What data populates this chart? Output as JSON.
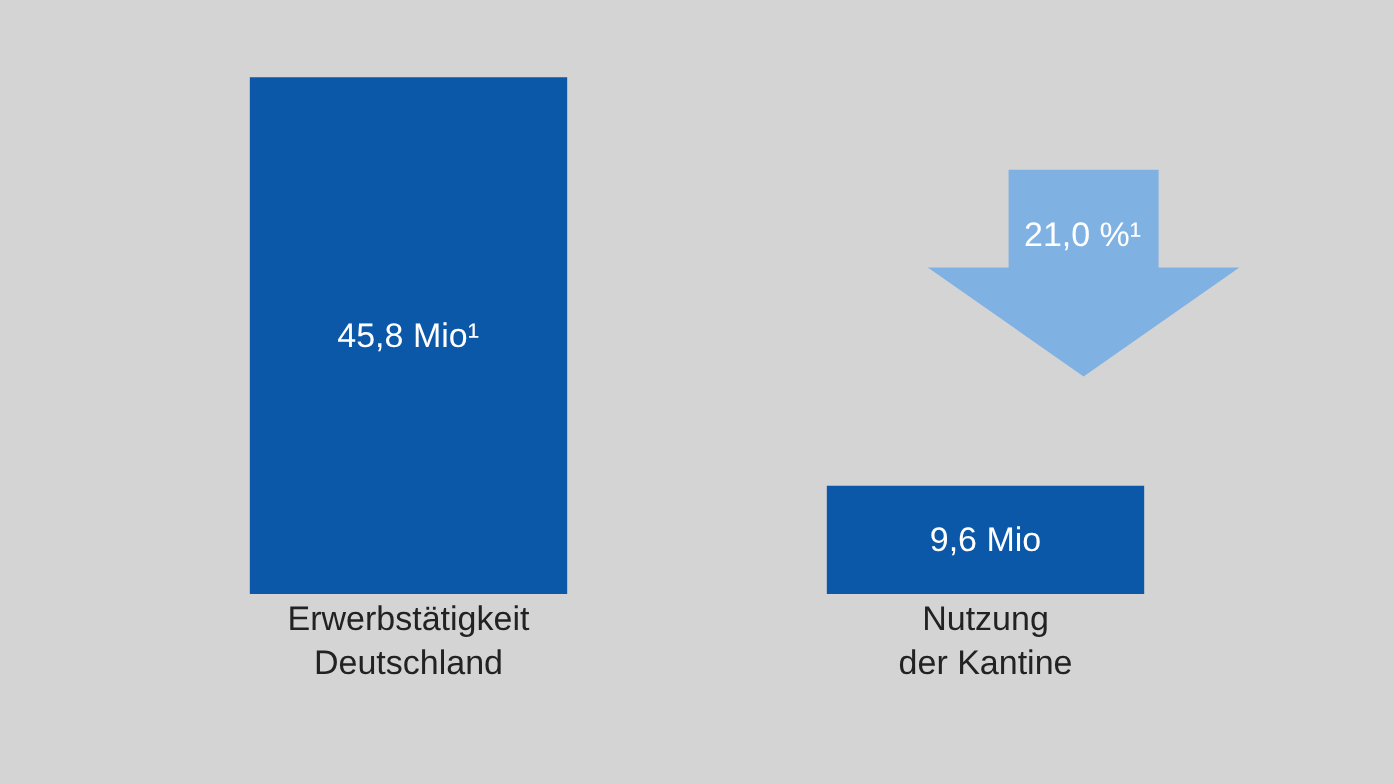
{
  "chart_data": {
    "type": "bar",
    "categories": [
      "Erwerbstätigkeit Deutschland",
      "Nutzung der Kantine"
    ],
    "values": [
      45.8,
      9.6
    ],
    "value_labels": [
      "45,8 Mio¹",
      "9,6 Mio"
    ],
    "color": "#0b57a8",
    "tick_labels": "x",
    "grid": false,
    "annotations": [
      "21,0 %¹"
    ]
  }
}
